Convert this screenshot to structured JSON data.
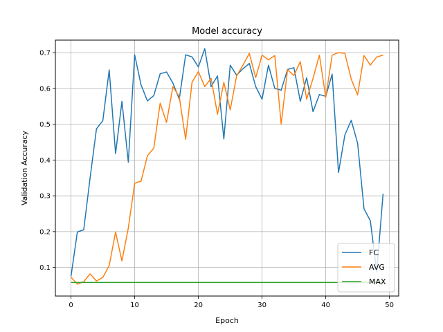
{
  "chart_data": {
    "type": "line",
    "title": "Model accuracy",
    "xlabel": "Epoch",
    "ylabel": "Validation Accuracy",
    "xlim": [
      -2.45,
      51.45
    ],
    "ylim": [
      0.02,
      0.735
    ],
    "xticks": [
      0,
      10,
      20,
      30,
      40,
      50
    ],
    "yticks": [
      0.1,
      0.2,
      0.3,
      0.4,
      0.5,
      0.6,
      0.7
    ],
    "grid": true,
    "legend_position": "bottom-right",
    "x": [
      0,
      1,
      2,
      3,
      4,
      5,
      6,
      7,
      8,
      9,
      10,
      11,
      12,
      13,
      14,
      15,
      16,
      17,
      18,
      19,
      20,
      21,
      22,
      23,
      24,
      25,
      26,
      27,
      28,
      29,
      30,
      31,
      32,
      33,
      34,
      35,
      36,
      37,
      38,
      39,
      40,
      41,
      42,
      43,
      44,
      45,
      46,
      47,
      48,
      49
    ],
    "series": [
      {
        "name": "FC",
        "color": "#1f77b4",
        "values": [
          0.075,
          0.199,
          0.205,
          0.35,
          0.487,
          0.51,
          0.652,
          0.418,
          0.564,
          0.394,
          0.694,
          0.61,
          0.565,
          0.58,
          0.641,
          0.646,
          0.615,
          0.57,
          0.694,
          0.688,
          0.66,
          0.711,
          0.605,
          0.635,
          0.459,
          0.665,
          0.637,
          0.655,
          0.67,
          0.605,
          0.57,
          0.665,
          0.6,
          0.595,
          0.653,
          0.658,
          0.564,
          0.63,
          0.535,
          0.583,
          0.578,
          0.64,
          0.365,
          0.47,
          0.511,
          0.447,
          0.264,
          0.23,
          0.087,
          0.306
        ]
      },
      {
        "name": "AVG",
        "color": "#ff7f0e",
        "values": [
          0.073,
          0.053,
          0.06,
          0.082,
          0.062,
          0.072,
          0.105,
          0.199,
          0.118,
          0.21,
          0.335,
          0.341,
          0.412,
          0.433,
          0.559,
          0.505,
          0.605,
          0.577,
          0.458,
          0.617,
          0.647,
          0.605,
          0.628,
          0.528,
          0.617,
          0.54,
          0.635,
          0.665,
          0.698,
          0.63,
          0.693,
          0.68,
          0.692,
          0.5,
          0.652,
          0.636,
          0.675,
          0.57,
          0.628,
          0.693,
          0.575,
          0.693,
          0.7,
          0.698,
          0.626,
          0.582,
          0.692,
          0.665,
          0.688,
          0.693
        ]
      },
      {
        "name": "MAX",
        "color": "#2ca02c",
        "values": [
          0.058,
          0.058,
          0.058,
          0.058,
          0.058,
          0.058,
          0.058,
          0.058,
          0.058,
          0.058,
          0.058,
          0.058,
          0.058,
          0.058,
          0.058,
          0.058,
          0.058,
          0.058,
          0.058,
          0.058,
          0.058,
          0.058,
          0.058,
          0.058,
          0.058,
          0.058,
          0.058,
          0.058,
          0.058,
          0.058,
          0.058,
          0.058,
          0.058,
          0.058,
          0.058,
          0.058,
          0.058,
          0.058,
          0.058,
          0.058,
          0.058,
          0.058,
          0.058,
          0.058,
          0.058,
          0.058,
          0.058,
          0.058,
          0.058,
          0.058
        ]
      }
    ]
  }
}
